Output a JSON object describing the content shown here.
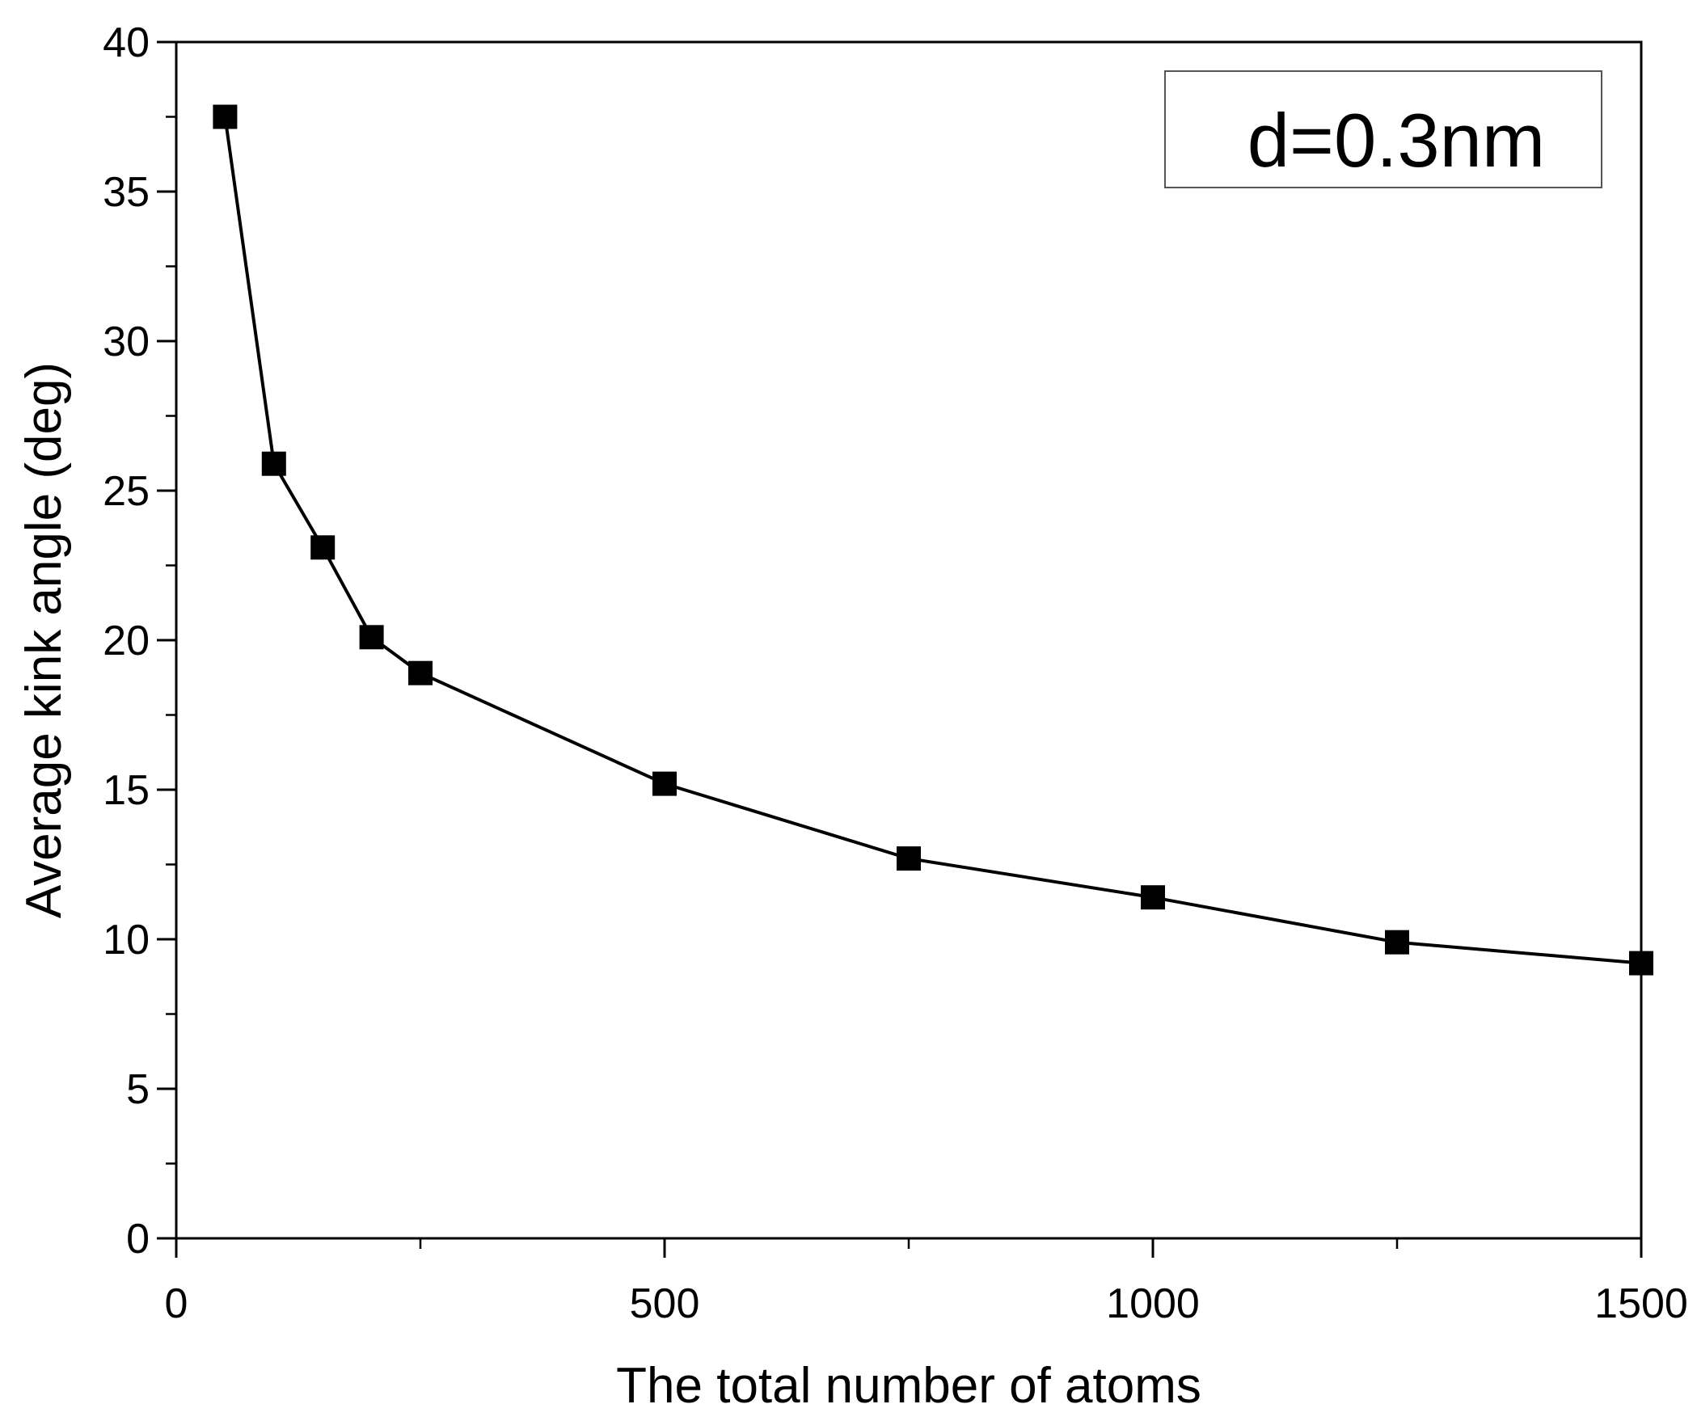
{
  "chart_data": {
    "type": "line",
    "title": "",
    "xlabel": "The total number of atoms",
    "ylabel": "Average kink angle (deg)",
    "xlim": [
      0,
      1500
    ],
    "ylim": [
      0,
      40
    ],
    "x_ticks": [
      0,
      500,
      1000,
      1500
    ],
    "x_tick_labels": [
      "0",
      "500",
      "1000",
      "1500"
    ],
    "x_minor_ticks": [
      250,
      750,
      1250
    ],
    "y_ticks": [
      0,
      5,
      10,
      15,
      20,
      25,
      30,
      35,
      40
    ],
    "y_tick_labels": [
      "0",
      "5",
      "10",
      "15",
      "20",
      "25",
      "30",
      "35",
      "40"
    ],
    "grid": false,
    "annotation": "d=0.3nm",
    "annotation_position": "top-right",
    "marker": "square",
    "colors": {
      "line": "#000000",
      "marker": "#000000",
      "axes": "#000000",
      "annotation_border": "#555555"
    },
    "series": [
      {
        "x": [
          50,
          100,
          150,
          200,
          250,
          500,
          750,
          1000,
          1250,
          1500
        ],
        "values": [
          37.5,
          25.9,
          23.1,
          20.1,
          18.9,
          15.2,
          12.7,
          11.4,
          9.9,
          9.2
        ]
      }
    ]
  }
}
